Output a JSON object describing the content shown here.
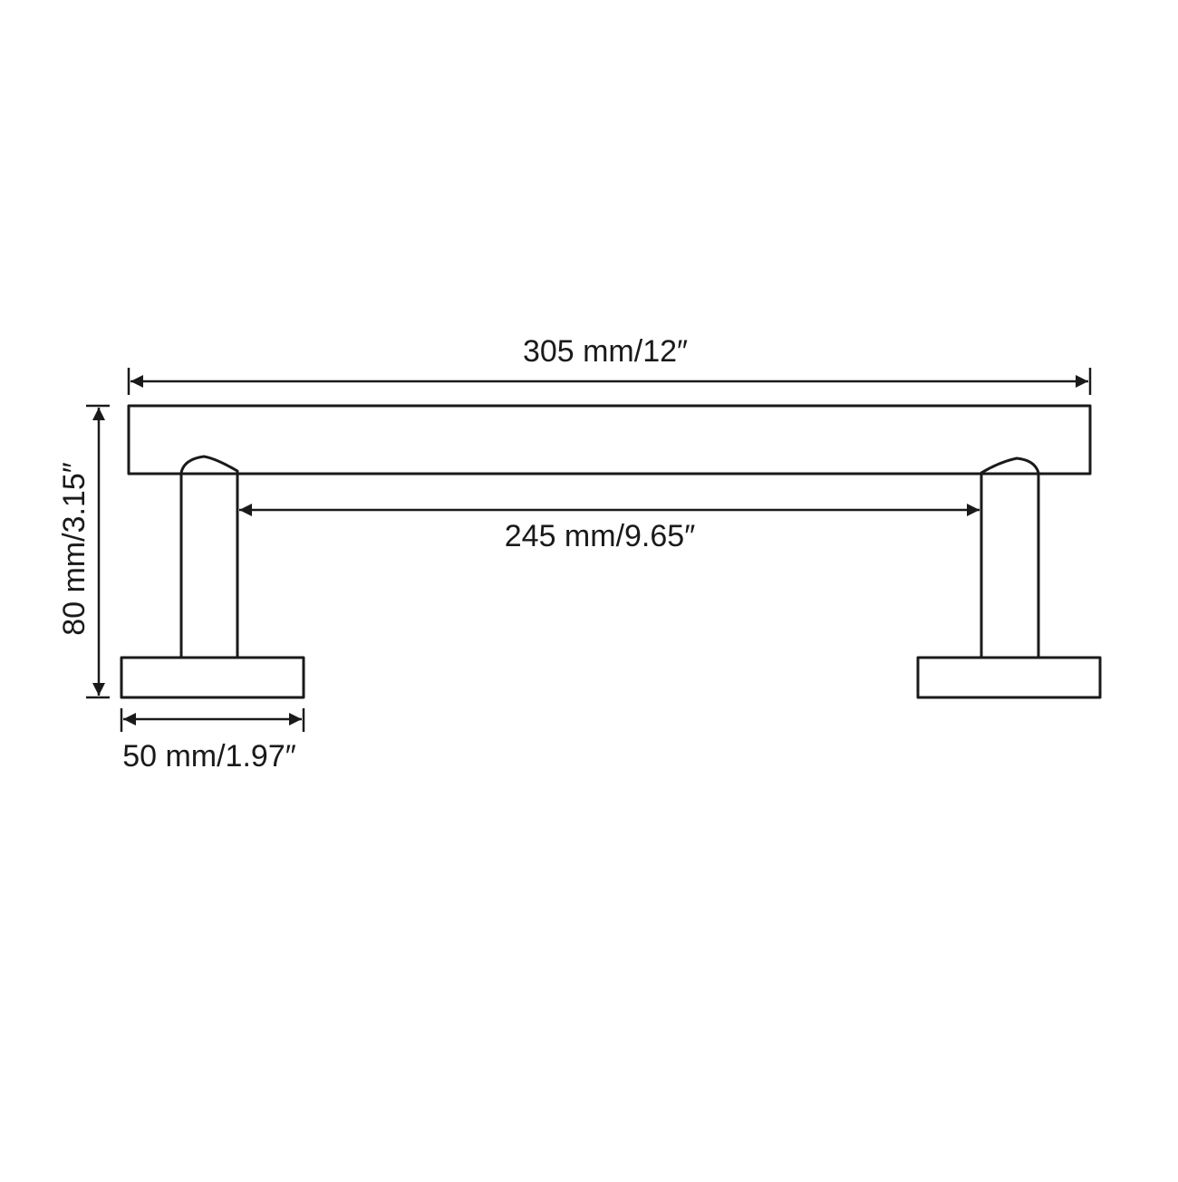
{
  "diagram": {
    "colors": {
      "line": "#1a1a1a",
      "background": "#ffffff"
    },
    "dimensions": {
      "overall_length": "305 mm/12″",
      "inner_length": "245 mm/9.65″",
      "height": "80 mm/3.15″",
      "base_width": "50 mm/1.97″"
    }
  }
}
